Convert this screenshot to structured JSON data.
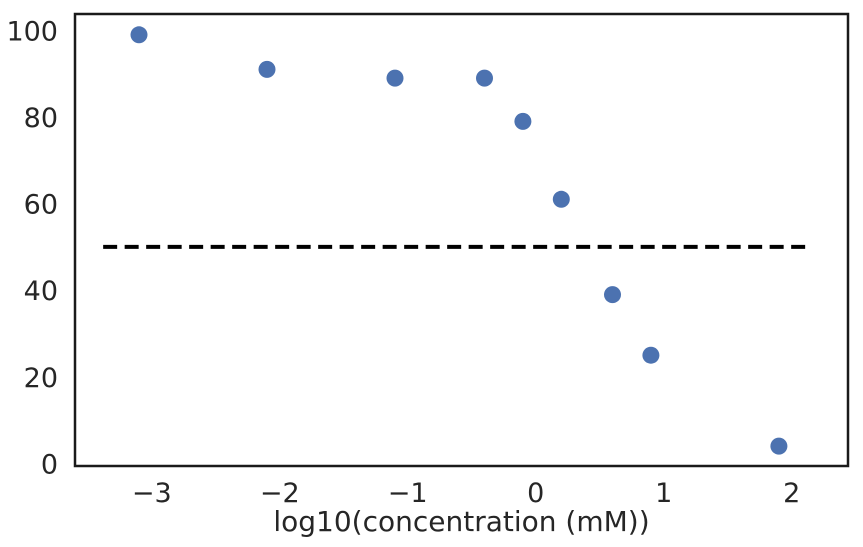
{
  "figure": {
    "background": "#ffffff",
    "spine_color": "#1a1a1a",
    "text_color": "#262626"
  },
  "chart_data": {
    "type": "scatter",
    "title": "",
    "xlabel": "log10(concentration (mM))",
    "ylabel": "",
    "x": [
      -3.1,
      -2.1,
      -1.1,
      -0.4,
      -0.1,
      0.2,
      0.6,
      0.9,
      1.9
    ],
    "y": [
      99,
      91,
      89,
      89,
      79,
      61,
      39,
      25,
      4
    ],
    "xlim": [
      -3.6,
      2.44
    ],
    "ylim": [
      -0.6,
      103.8
    ],
    "x_ticks": [
      -3,
      -2,
      -1,
      0,
      1,
      2
    ],
    "x_tick_labels": [
      "−3",
      "−2",
      "−1",
      "0",
      "1",
      "2"
    ],
    "y_ticks": [
      0,
      20,
      40,
      60,
      80,
      100
    ],
    "y_tick_labels": [
      "0",
      "20",
      "40",
      "60",
      "80",
      "100"
    ],
    "grid": false,
    "legend": null,
    "marker_color": "#4C72B0",
    "marker_diameter_px": 17,
    "reference_line": {
      "y": 50,
      "style": "dashed",
      "color": "#000000",
      "x_start": -3.38,
      "x_end": 2.16
    }
  }
}
